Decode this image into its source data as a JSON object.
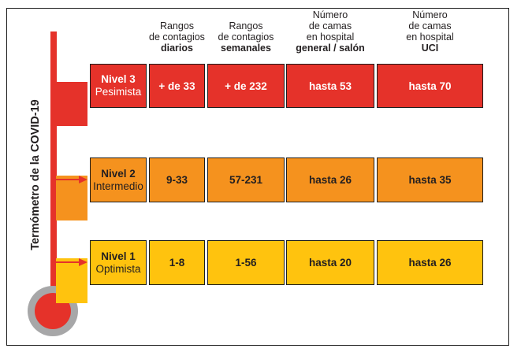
{
  "title_vertical": "Termómetro de la COVID-19",
  "colors": {
    "red": "#E5322A",
    "orange": "#F5921E",
    "yellow": "#FFC30E",
    "gray": "#A7A7A8",
    "dark": "#231F20",
    "white": "#FFFFFF"
  },
  "headers": [
    {
      "lines": [
        "Rangos",
        "de contagios"
      ],
      "bold": "diarios"
    },
    {
      "lines": [
        "Rangos",
        "de contagios"
      ],
      "bold": "semanales"
    },
    {
      "lines": [
        "Número",
        "de camas",
        "en hospital"
      ],
      "bold": "general / salón"
    },
    {
      "lines": [
        "Número",
        "de camas",
        "en hospital"
      ],
      "bold": "UCI"
    }
  ],
  "levels": [
    {
      "name": "Nivel 3",
      "subtitle": "Pesimista",
      "values": [
        "+ de 33",
        "+ de 232",
        "hasta 53",
        "hasta 70"
      ]
    },
    {
      "name": "Nivel 2",
      "subtitle": "Intermedio",
      "values": [
        "9-33",
        "57-231",
        "hasta 26",
        "hasta 35"
      ]
    },
    {
      "name": "Nivel 1",
      "subtitle": "Optimista",
      "values": [
        "1-8",
        "1-56",
        "hasta 20",
        "hasta 26"
      ]
    }
  ]
}
